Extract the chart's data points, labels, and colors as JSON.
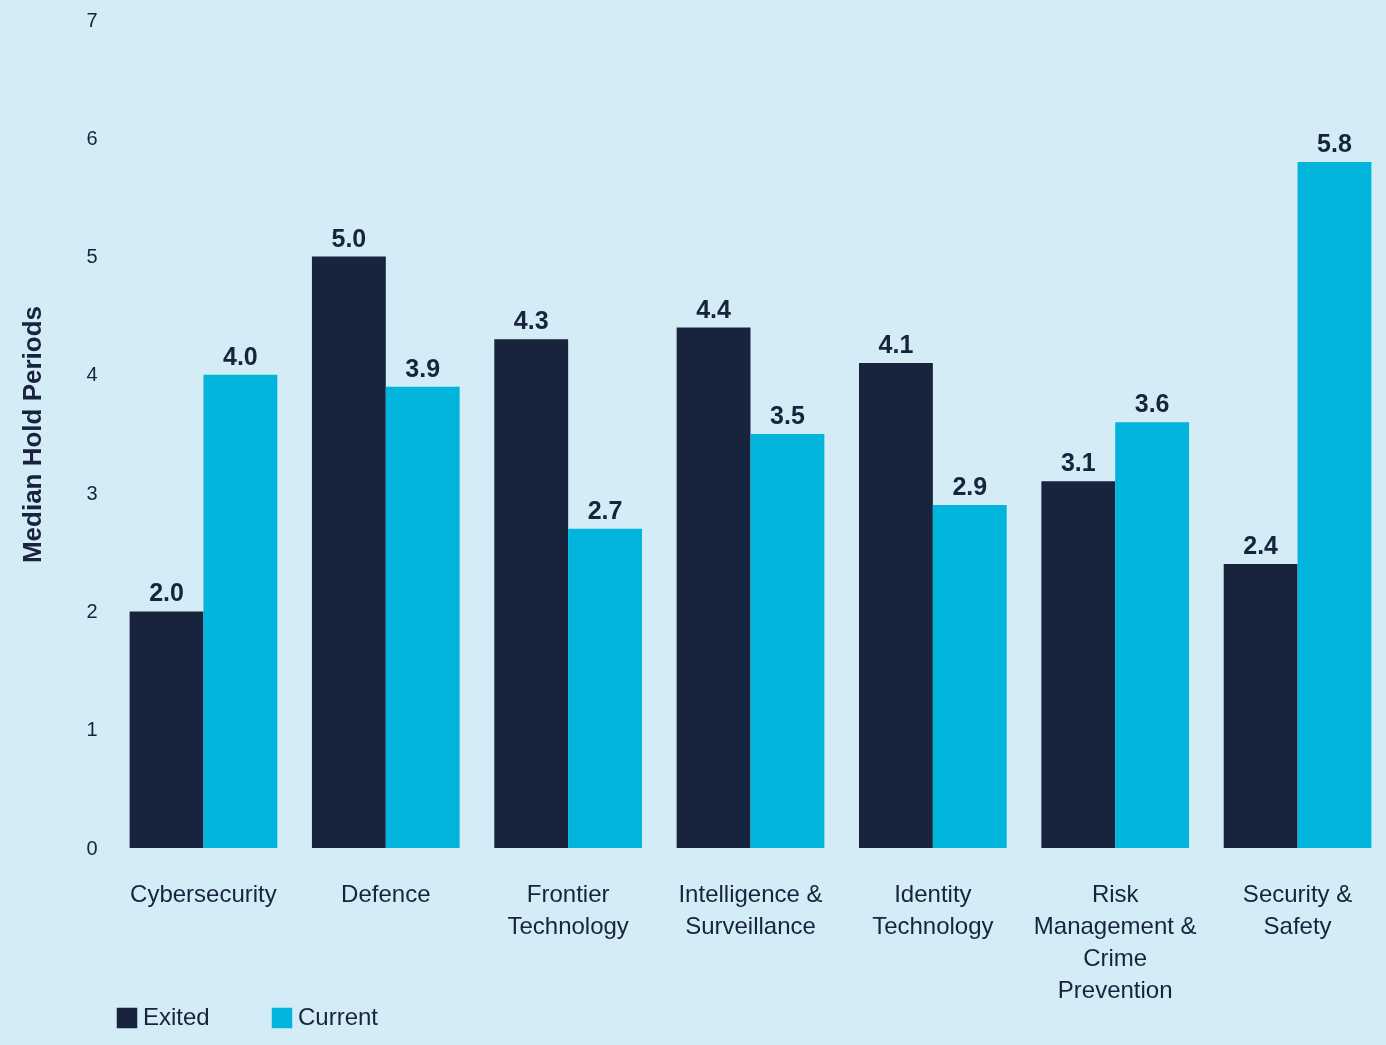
{
  "chart_data": {
    "type": "bar",
    "ylabel": "Median Hold Periods",
    "categories": [
      "Cybersecurity",
      "Defence",
      "Frontier Technology",
      "Intelligence & Surveillance",
      "Identity Technology",
      "Risk Management & Crime Prevention",
      "Security & Safety"
    ],
    "series": [
      {
        "name": "Exited",
        "color": "#18233d",
        "values": [
          2.0,
          5.0,
          4.3,
          4.4,
          4.1,
          3.1,
          2.4
        ],
        "value_labels": [
          "2.0",
          "5.0",
          "4.3",
          "4.4",
          "4.1",
          "3.1",
          "2.4"
        ]
      },
      {
        "name": "Current",
        "color": "#00b4dc",
        "values": [
          4.0,
          3.9,
          2.7,
          3.5,
          2.9,
          3.6,
          5.8
        ],
        "value_labels": [
          "4.0",
          "3.9",
          "2.7",
          "3.5",
          "2.9",
          "3.6",
          "5.8"
        ]
      }
    ],
    "ylim": [
      0,
      7
    ],
    "yticks": [
      0,
      1,
      2,
      3,
      4,
      5,
      6,
      7
    ],
    "grid": false,
    "legend": "bottom"
  }
}
